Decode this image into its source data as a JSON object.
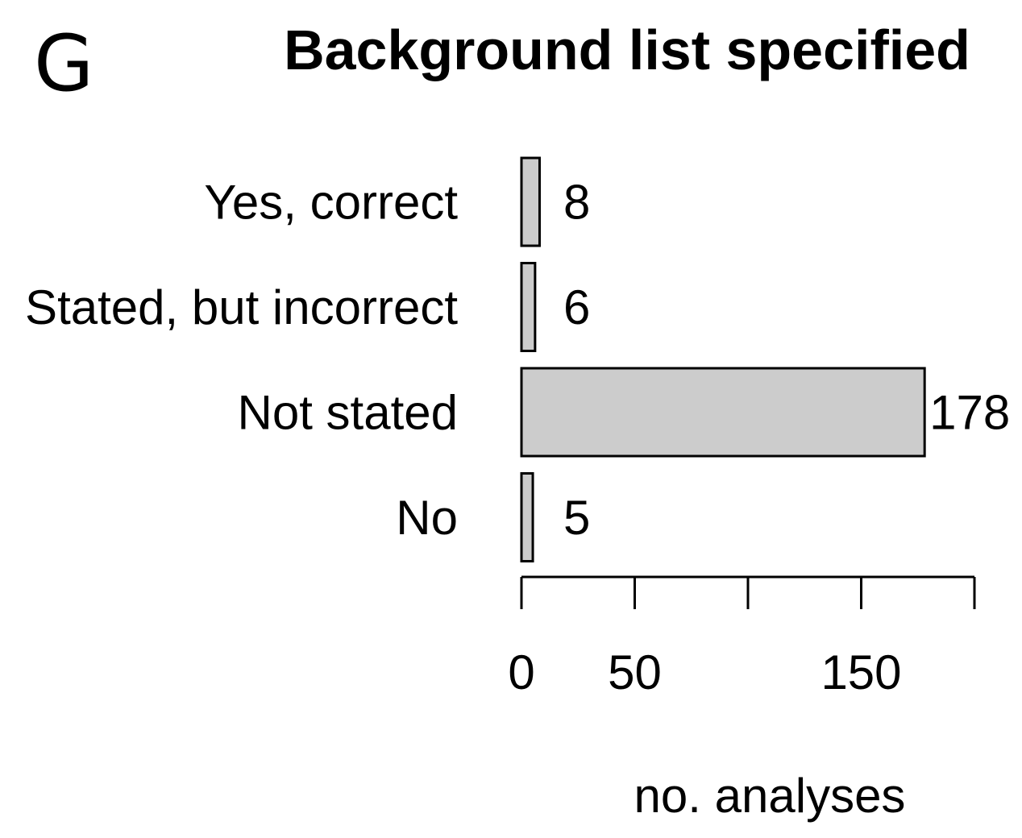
{
  "panel_letter": "G",
  "chart_data": {
    "type": "bar",
    "orientation": "horizontal",
    "title": "Background list specified",
    "categories": [
      "Yes, correct",
      "Stated, but incorrect",
      "Not stated",
      "No"
    ],
    "values": [
      8,
      6,
      178,
      5
    ],
    "data_labels": [
      "8",
      "6",
      "178",
      "5"
    ],
    "xlabel": "no. analyses",
    "ylabel": "",
    "xlim": [
      0,
      200
    ],
    "x_ticks": [
      0,
      50,
      100,
      150,
      200
    ],
    "x_tick_labels": [
      "0",
      "50",
      "",
      "150",
      ""
    ],
    "bar_color": "#cccccc",
    "grid": false,
    "legend": "none"
  }
}
